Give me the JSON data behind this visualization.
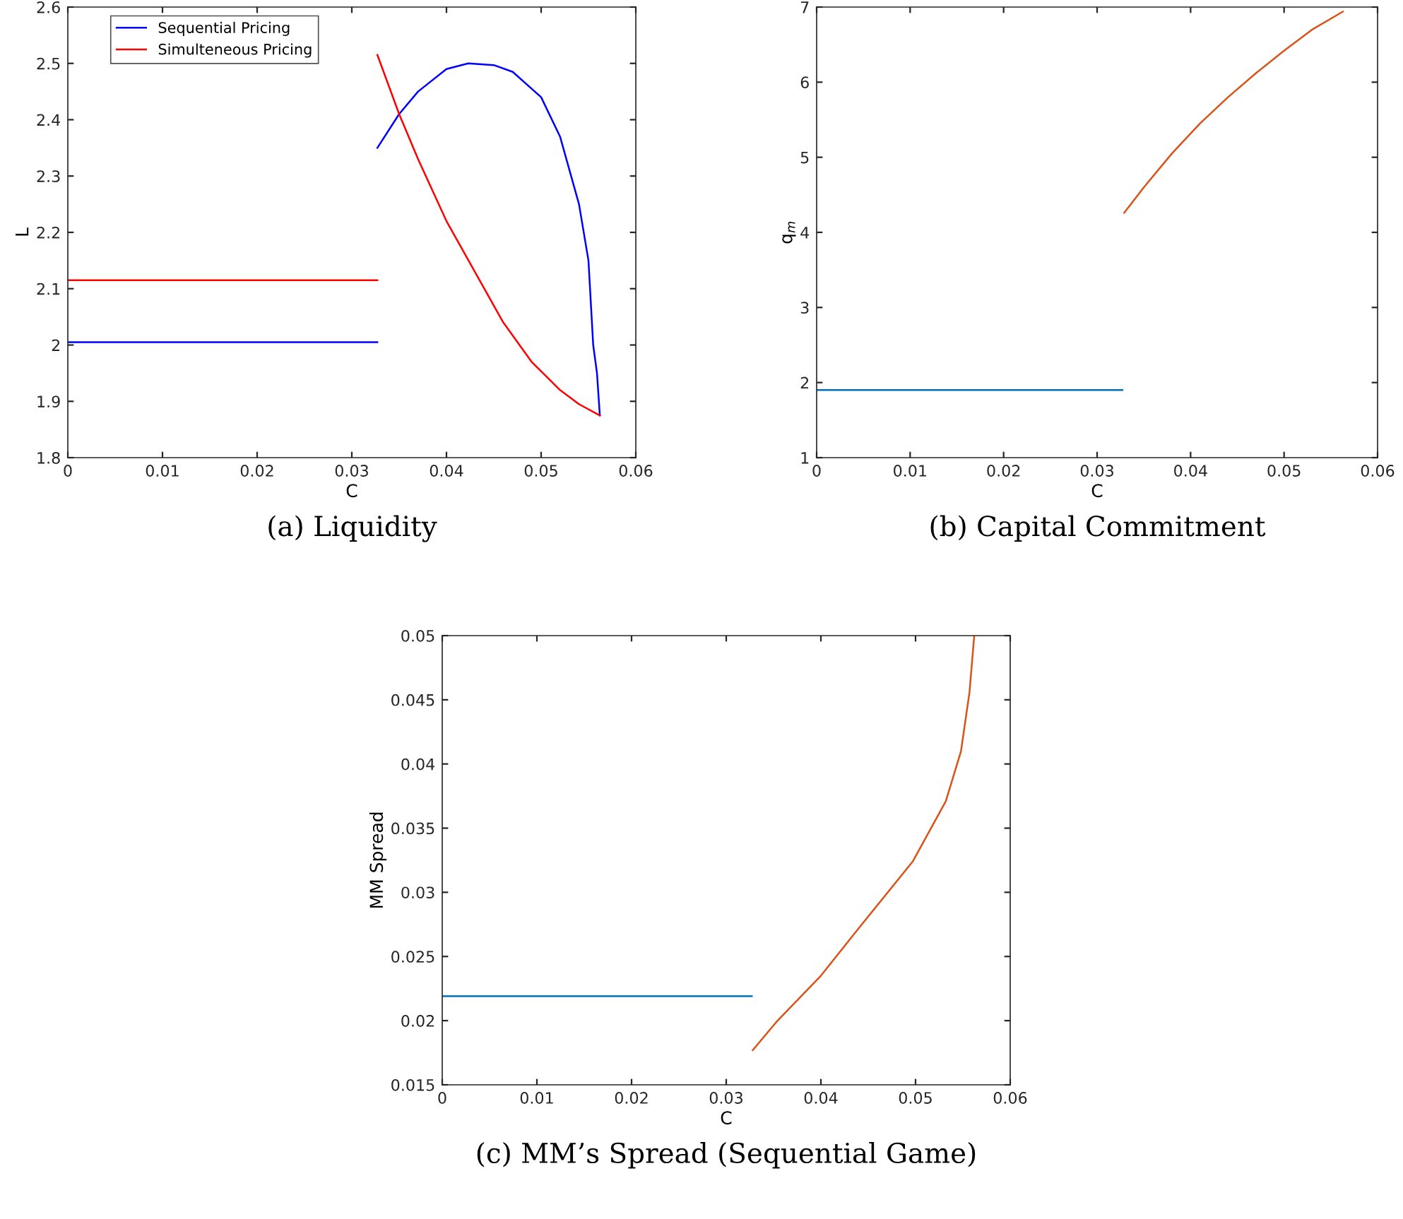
{
  "chart_data": [
    {
      "type": "line",
      "title": "(a) Liquidity",
      "xlabel": "C",
      "ylabel": "L",
      "xlim": [
        0,
        0.06
      ],
      "xticks": [
        0,
        0.01,
        0.02,
        0.03,
        0.04,
        0.05,
        0.06
      ],
      "ylim": [
        1.8,
        2.6
      ],
      "yticks": [
        1.8,
        1.9,
        2,
        2.1,
        2.2,
        2.3,
        2.4,
        2.5,
        2.6
      ],
      "grid": false,
      "legend": "top left",
      "line_style": "solid",
      "marker": "none",
      "series": [
        {
          "name": "Sequential Pricing",
          "color": "#0000ff",
          "x": [
            0.0327,
            0.035,
            0.037,
            0.04,
            0.0423,
            0.045,
            0.047,
            0.05,
            0.052,
            0.054,
            0.055,
            0.0555,
            0.0559,
            0.0562
          ],
          "values": [
            2.35,
            2.41,
            2.45,
            2.49,
            2.5,
            2.497,
            2.485,
            2.44,
            2.37,
            2.25,
            2.15,
            2.0,
            1.95,
            1.875
          ]
        },
        {
          "name": "Simulteneous Pricing",
          "color": "#ff0000",
          "x": [
            0.0327,
            0.035,
            0.037,
            0.04,
            0.043,
            0.046,
            0.049,
            0.052,
            0.054,
            0.0562
          ],
          "values": [
            2.515,
            2.41,
            2.33,
            2.22,
            2.13,
            2.04,
            1.97,
            1.92,
            1.895,
            1.875
          ]
        },
        {
          "color": "#0000ff",
          "x": [
            0,
            0.0327
          ],
          "values": [
            2.005,
            2.005
          ]
        },
        {
          "color": "#ff0000",
          "x": [
            0,
            0.0327
          ],
          "values": [
            2.115,
            2.115
          ]
        }
      ]
    },
    {
      "type": "line",
      "title": "(b) Capital Commitment",
      "xlabel": "C",
      "ylabel": "q$_{m}$",
      "xlim": [
        0,
        0.06
      ],
      "xticks": [
        0,
        0.01,
        0.02,
        0.03,
        0.04,
        0.05,
        0.06
      ],
      "ylim": [
        1,
        7
      ],
      "yticks": [
        1,
        2,
        3,
        4,
        5,
        6,
        7
      ],
      "grid": false,
      "line_style": "solid",
      "marker": "none",
      "series": [
        {
          "color": "#0072bd",
          "x": [
            0,
            0.0327
          ],
          "values": [
            1.9,
            1.9
          ]
        },
        {
          "color": "#d95319",
          "x": [
            0.0329,
            0.035,
            0.038,
            0.041,
            0.044,
            0.047,
            0.05,
            0.053,
            0.0563
          ],
          "values": [
            4.26,
            4.6,
            5.05,
            5.45,
            5.8,
            6.12,
            6.42,
            6.7,
            6.94
          ]
        }
      ]
    },
    {
      "type": "line",
      "title": "(c) MM’s Spread (Sequential Game)",
      "xlabel": "C",
      "ylabel": "MM Spread",
      "xlim": [
        0,
        0.06
      ],
      "xticks": [
        0,
        0.01,
        0.02,
        0.03,
        0.04,
        0.05,
        0.06
      ],
      "ylim": [
        0.015,
        0.05
      ],
      "yticks": [
        0.015,
        0.02,
        0.025,
        0.03,
        0.035,
        0.04,
        0.045,
        0.05
      ],
      "grid": false,
      "line_style": "solid",
      "marker": "none",
      "series": [
        {
          "color": "#0072bd",
          "x": [
            0,
            0.0327
          ],
          "values": [
            0.0219,
            0.0219
          ]
        },
        {
          "color": "#d95319",
          "x": [
            0.0328,
            0.0353,
            0.04,
            0.044,
            0.0497,
            0.0532,
            0.0548,
            0.0557,
            0.0562
          ],
          "values": [
            0.0177,
            0.0199,
            0.0235,
            0.0272,
            0.0324,
            0.0371,
            0.041,
            0.0456,
            0.05
          ]
        }
      ]
    }
  ]
}
